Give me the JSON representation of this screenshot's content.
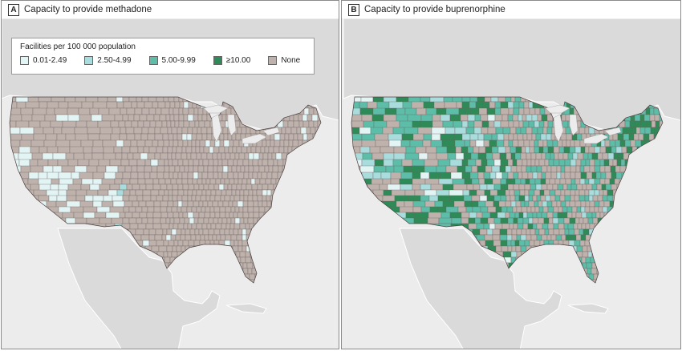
{
  "panels": [
    {
      "letter": "A",
      "title": "Capacity to provide methadone"
    },
    {
      "letter": "B",
      "title": "Capacity to provide buprenorphine"
    }
  ],
  "legend": {
    "title": "Facilities per 100 000 population",
    "items": [
      {
        "label": "0.01-2.49",
        "color": "#e3f4f5"
      },
      {
        "label": "2.50-4.99",
        "color": "#a9dcdc"
      },
      {
        "label": "5.00-9.99",
        "color": "#5cbea8"
      },
      {
        "label": "≥10.00",
        "color": "#2e8b57"
      },
      {
        "label": "None",
        "color": "#bfb2ac"
      }
    ]
  },
  "colors": {
    "ocean": "#ececec",
    "land_outside": "#dadada",
    "us_none": "#bfb2ac",
    "county_border": "#6a6060"
  }
}
